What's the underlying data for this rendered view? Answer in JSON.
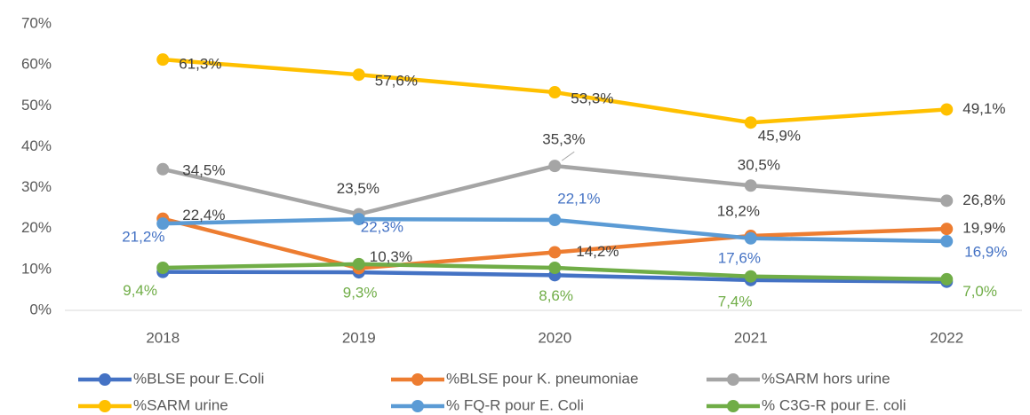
{
  "chart_data": {
    "type": "line",
    "categories": [
      "2018",
      "2019",
      "2020",
      "2021",
      "2022"
    ],
    "ylim": [
      0,
      70
    ],
    "yticks": [
      {
        "value": 0,
        "label": "0%"
      },
      {
        "value": 10,
        "label": "10%"
      },
      {
        "value": 20,
        "label": "20%"
      },
      {
        "value": 30,
        "label": "30%"
      },
      {
        "value": 40,
        "label": "40%"
      },
      {
        "value": 50,
        "label": "50%"
      },
      {
        "value": 60,
        "label": "60%"
      },
      {
        "value": 70,
        "label": "70%"
      }
    ],
    "legend": "bottom",
    "series": [
      {
        "name": "%BLSE pour E.Coli",
        "color": "#4472C4",
        "values": [
          9.4,
          9.3,
          8.6,
          7.4,
          7.0
        ],
        "value_labels": [
          "9,4%",
          "9,3%",
          "8,6%",
          "7,4%",
          "7,0%"
        ],
        "label_color": "#70AD47"
      },
      {
        "name": "%BLSE pour K. pneumoniae",
        "color": "#ED7D31",
        "values": [
          22.4,
          10.3,
          14.2,
          18.2,
          19.9
        ],
        "value_labels": [
          "22,4%",
          "10,3%",
          "14,2%",
          "18,2%",
          "19,9%"
        ],
        "label_color": "#404040"
      },
      {
        "name": "%SARM hors urine",
        "color": "#A5A5A5",
        "values": [
          34.5,
          23.5,
          35.3,
          30.5,
          26.8
        ],
        "value_labels": [
          "34,5%",
          "23,5%",
          "35,3%",
          "30,5%",
          "26,8%"
        ],
        "label_color": "#404040"
      },
      {
        "name": "%SARM urine",
        "color": "#FFC000",
        "values": [
          61.3,
          57.6,
          53.3,
          45.9,
          49.1
        ],
        "value_labels": [
          "61,3%",
          "57,6%",
          "53,3%",
          "45,9%",
          "49,1%"
        ],
        "label_color": "#404040"
      },
      {
        "name": "% FQ-R pour E. Coli",
        "color": "#5B9BD5",
        "values": [
          21.2,
          22.3,
          22.1,
          17.6,
          16.9
        ],
        "value_labels": [
          "21,2%",
          "22,3%",
          "22,1%",
          "17,6%",
          "16,9%"
        ],
        "label_color": "#4472C4"
      },
      {
        "name": "% C3G-R pour E. coli",
        "color": "#70AD47",
        "values": [
          10.4,
          11.3,
          10.4,
          8.3,
          7.6
        ]
      }
    ]
  }
}
